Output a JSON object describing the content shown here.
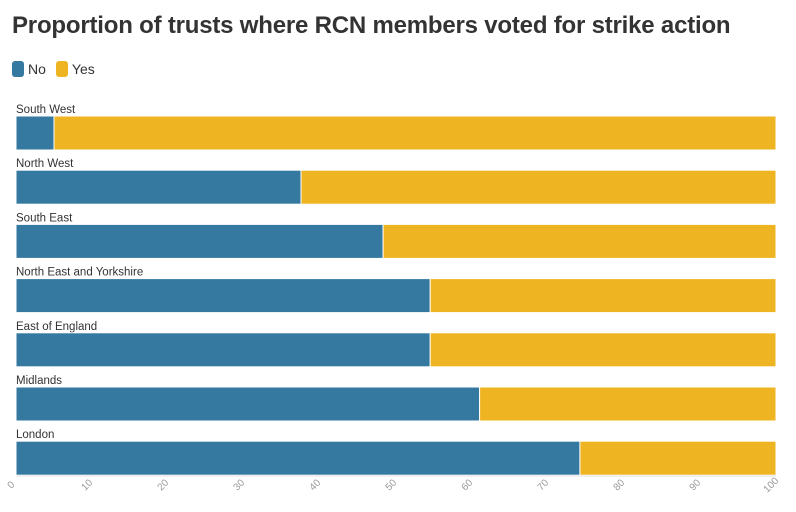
{
  "chart_data": {
    "type": "bar",
    "orientation": "horizontal",
    "stacked": true,
    "title": "Proportion of trusts where RCN members voted for strike action",
    "xlabel": "",
    "ylabel": "",
    "xlim": [
      0,
      100
    ],
    "x_ticks": [
      "0",
      "10",
      "20",
      "30",
      "40",
      "50",
      "60",
      "70",
      "80",
      "90",
      "100"
    ],
    "legend_position": "top-left",
    "grid": false,
    "categories": [
      "South West",
      "North West",
      "South East",
      "North East and Yorkshire",
      "East of England",
      "Midlands",
      "London"
    ],
    "series": [
      {
        "name": "No",
        "color": "#3579a1",
        "values": [
          5,
          37.5,
          48.3,
          54.5,
          54.5,
          61,
          74.2
        ]
      },
      {
        "name": "Yes",
        "color": "#eeb422",
        "values": [
          95,
          62.5,
          51.7,
          45.5,
          45.5,
          39,
          25.8
        ]
      }
    ]
  }
}
